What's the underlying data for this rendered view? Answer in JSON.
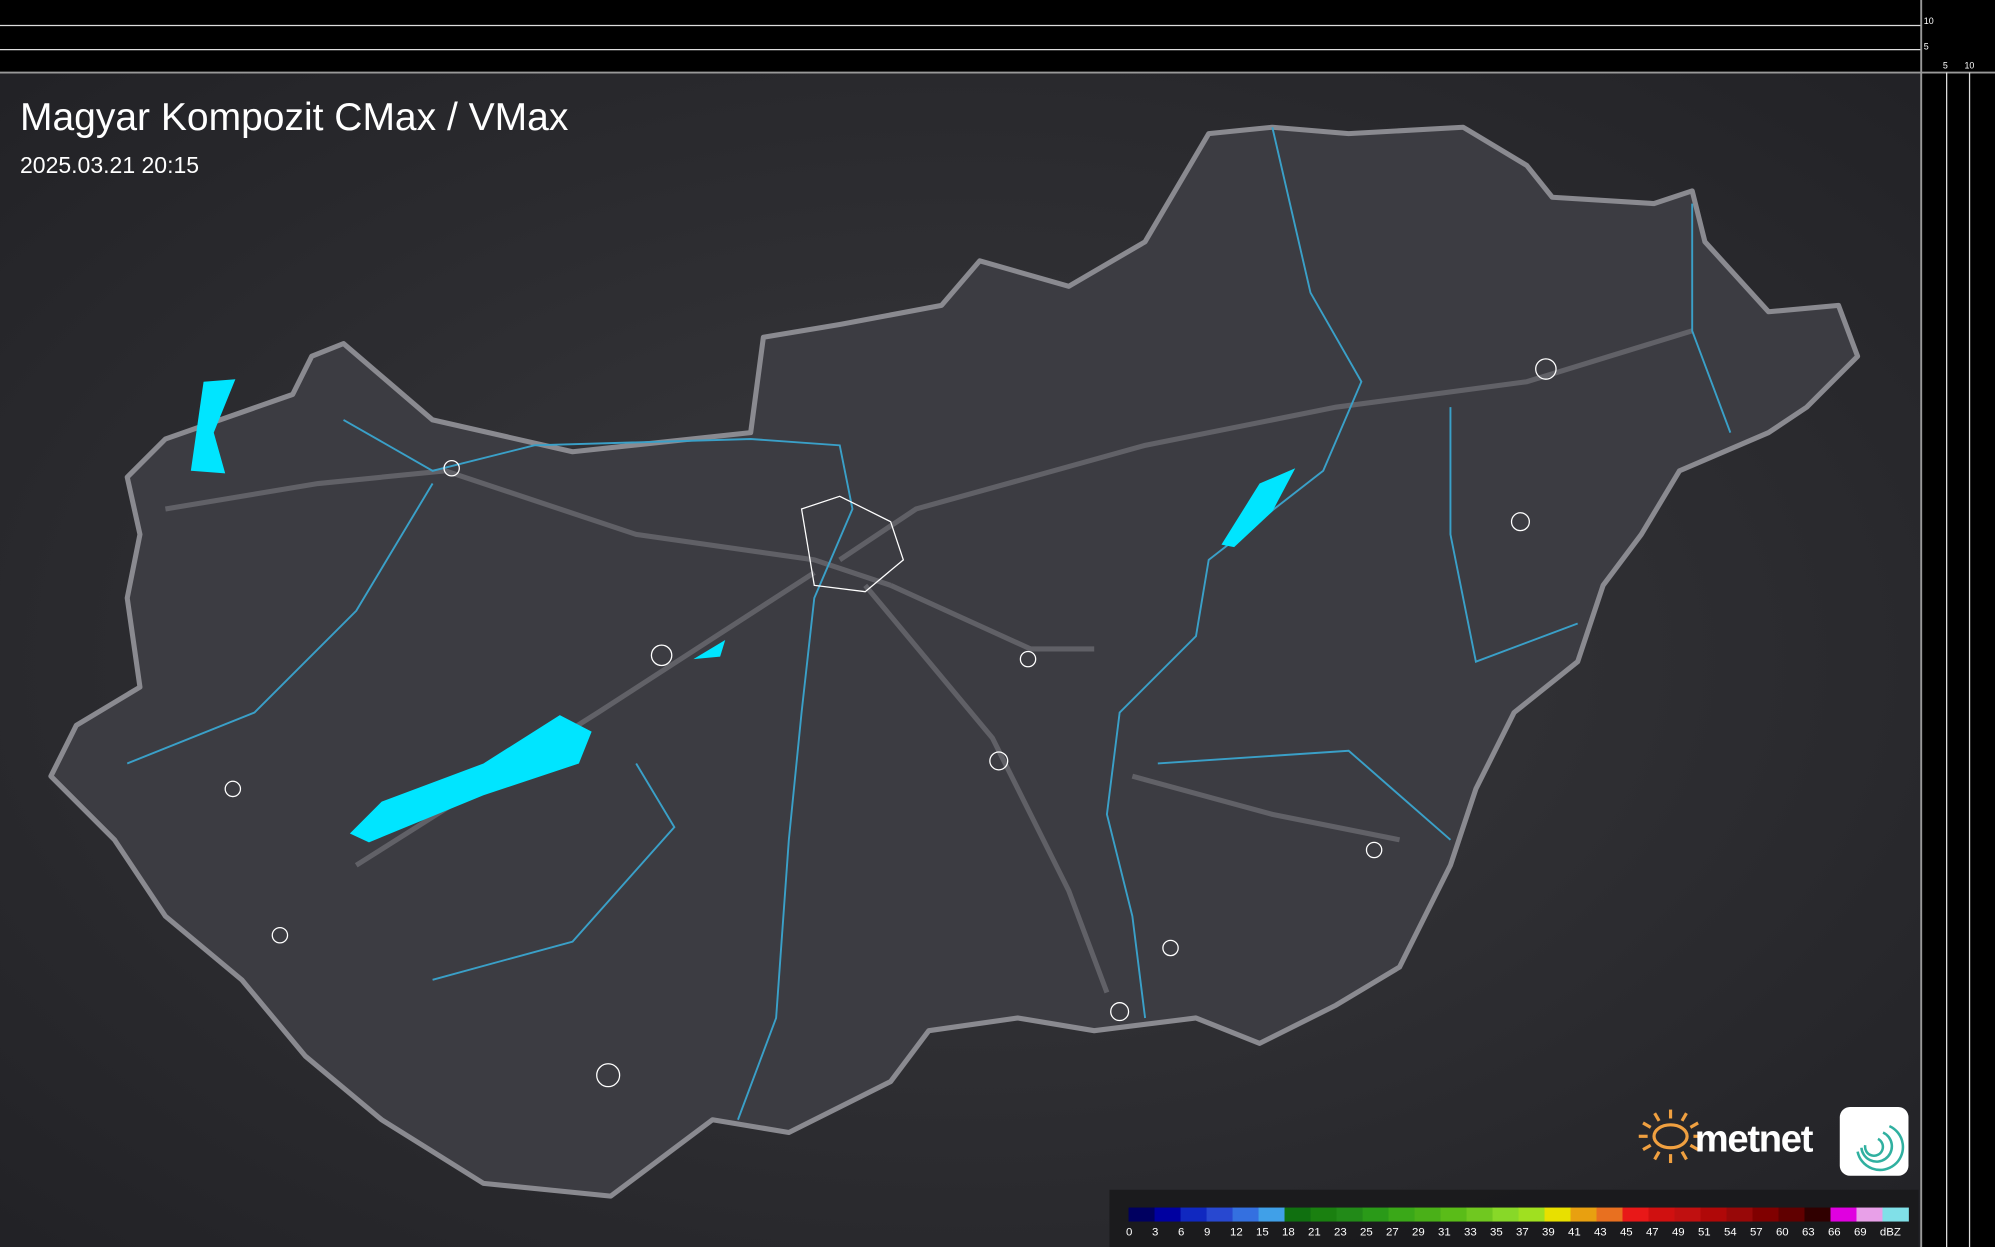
{
  "header": {
    "title": "Magyar Kompozit CMax / VMax",
    "timestamp": "2025.03.21 20:15"
  },
  "scale": {
    "left_ticks": [
      "10",
      "5"
    ],
    "bottom_ticks": [
      "5",
      "10"
    ]
  },
  "logo": {
    "brand": "metnet"
  },
  "legend": {
    "unit": "dBZ",
    "labels": [
      "0",
      "3",
      "6",
      "9",
      "12",
      "15",
      "18",
      "21",
      "23",
      "25",
      "27",
      "29",
      "31",
      "33",
      "35",
      "37",
      "39",
      "41",
      "43",
      "45",
      "47",
      "49",
      "51",
      "54",
      "57",
      "60",
      "63",
      "66",
      "69"
    ],
    "colors": [
      "#000060",
      "#0000a0",
      "#1028c0",
      "#2848d0",
      "#3470e0",
      "#40a0e8",
      "#107010",
      "#1a8010",
      "#228a18",
      "#2a9a18",
      "#3aa818",
      "#4ab018",
      "#5abc18",
      "#70c820",
      "#88d828",
      "#a0e020",
      "#e8e000",
      "#e8a010",
      "#e87020",
      "#e81818",
      "#d01010",
      "#c01010",
      "#b00808",
      "#980808",
      "#800000",
      "#600000",
      "#300000",
      "#e000e0",
      "#e8a0e8",
      "#80e0e8"
    ]
  },
  "colors": {
    "water": "#00e5ff",
    "river": "#3aa0c8",
    "border": "#8a8a90",
    "land": "#3a3a40"
  }
}
